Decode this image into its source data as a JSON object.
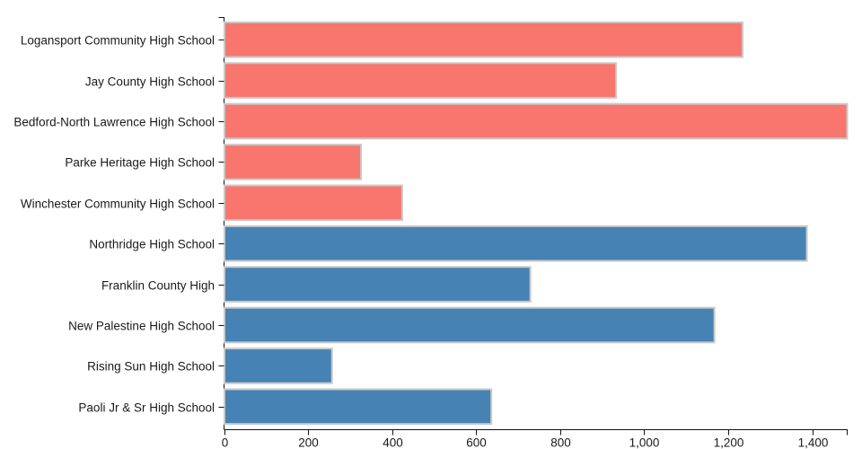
{
  "chart_data": {
    "type": "bar",
    "orientation": "horizontal",
    "title": "",
    "xlabel": "",
    "ylabel": "",
    "grid": false,
    "legend": "none",
    "background": "#ffffff",
    "categories": [
      "Logansport Community High School",
      "Jay County High School",
      "Bedford-North Lawrence High School",
      "Parke Heritage High School",
      "Winchester Community High School",
      "Northridge High School",
      "Franklin County High",
      "New Palestine High School",
      "Rising Sun High School",
      "Paoli Jr & Sr High School"
    ],
    "values": [
      1234,
      933,
      1483,
      326,
      424,
      1387,
      729,
      1167,
      257,
      636
    ],
    "bar_colors": [
      "#f8766d",
      "#f8766d",
      "#f8766d",
      "#f8766d",
      "#f8766d",
      "#4682b4",
      "#4682b4",
      "#4682b4",
      "#4682b4",
      "#4682b4"
    ],
    "color_groups": {
      "salmon": "#f8766d",
      "steelblue": "#4682b4"
    },
    "bar_stroke_color": "#c9c9c9",
    "axis_color": "#111111",
    "tick_label_color": "#1a1a1a",
    "xlim": [
      0,
      1483
    ],
    "x_ticks": [
      0,
      200,
      400,
      600,
      800,
      1000,
      1200,
      1400
    ],
    "x_tick_labels": [
      "0",
      "200",
      "400",
      "600",
      "800",
      "1,000",
      "1,200",
      "1,400"
    ]
  }
}
